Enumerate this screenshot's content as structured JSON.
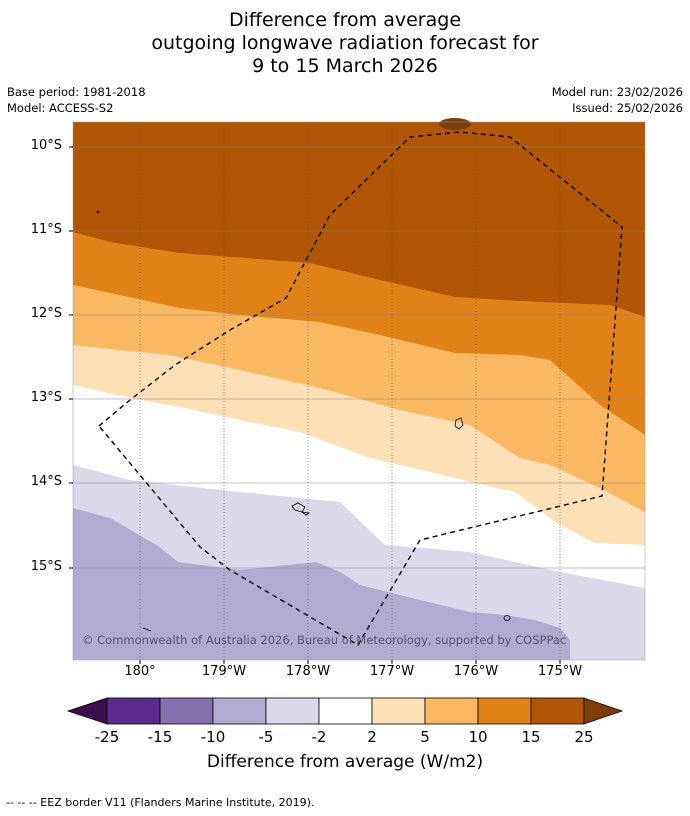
{
  "title": {
    "line1": "Difference from average",
    "line2": "outgoing longwave radiation forecast for",
    "line3": "9 to 15 March 2026"
  },
  "meta": {
    "base_period": "Base period: 1981-2018",
    "model": "Model: ACCESS-S2",
    "model_run": "Model run: 23/02/2026",
    "issued": "Issued: 25/02/2026"
  },
  "map": {
    "lat_labels": [
      "10°S",
      "11°S",
      "12°S",
      "13°S",
      "14°S",
      "15°S"
    ],
    "lon_labels": [
      "180°",
      "179°W",
      "178°W",
      "177°W",
      "176°W",
      "175°W"
    ],
    "copyright": "© Commonwealth of Australia 2026, Bureau of Meteorology, supported by COSPPac"
  },
  "colorbar": {
    "ticks": [
      "-25",
      "-15",
      "-10",
      "-5",
      "-2",
      "2",
      "5",
      "10",
      "15",
      "25"
    ],
    "colors": {
      "below_-25": "#3b0f4f",
      "-25_-15": "#5b2a8a",
      "-15_-10": "#8470ae",
      "-10_-5": "#b1abd2",
      "-5_-2": "#d9d9ea",
      "-2_2": "#ffffff",
      "2_5": "#fde0b6",
      "5_10": "#fbb862",
      "10_15": "#e18218",
      "15_25": "#b05605",
      "above_25": "#7d3c08"
    },
    "label": "Difference from average (W/m2)"
  },
  "legend": {
    "eez": "--  --  -- EEZ border V11 (Flanders Marine Institute, 2019)."
  }
}
